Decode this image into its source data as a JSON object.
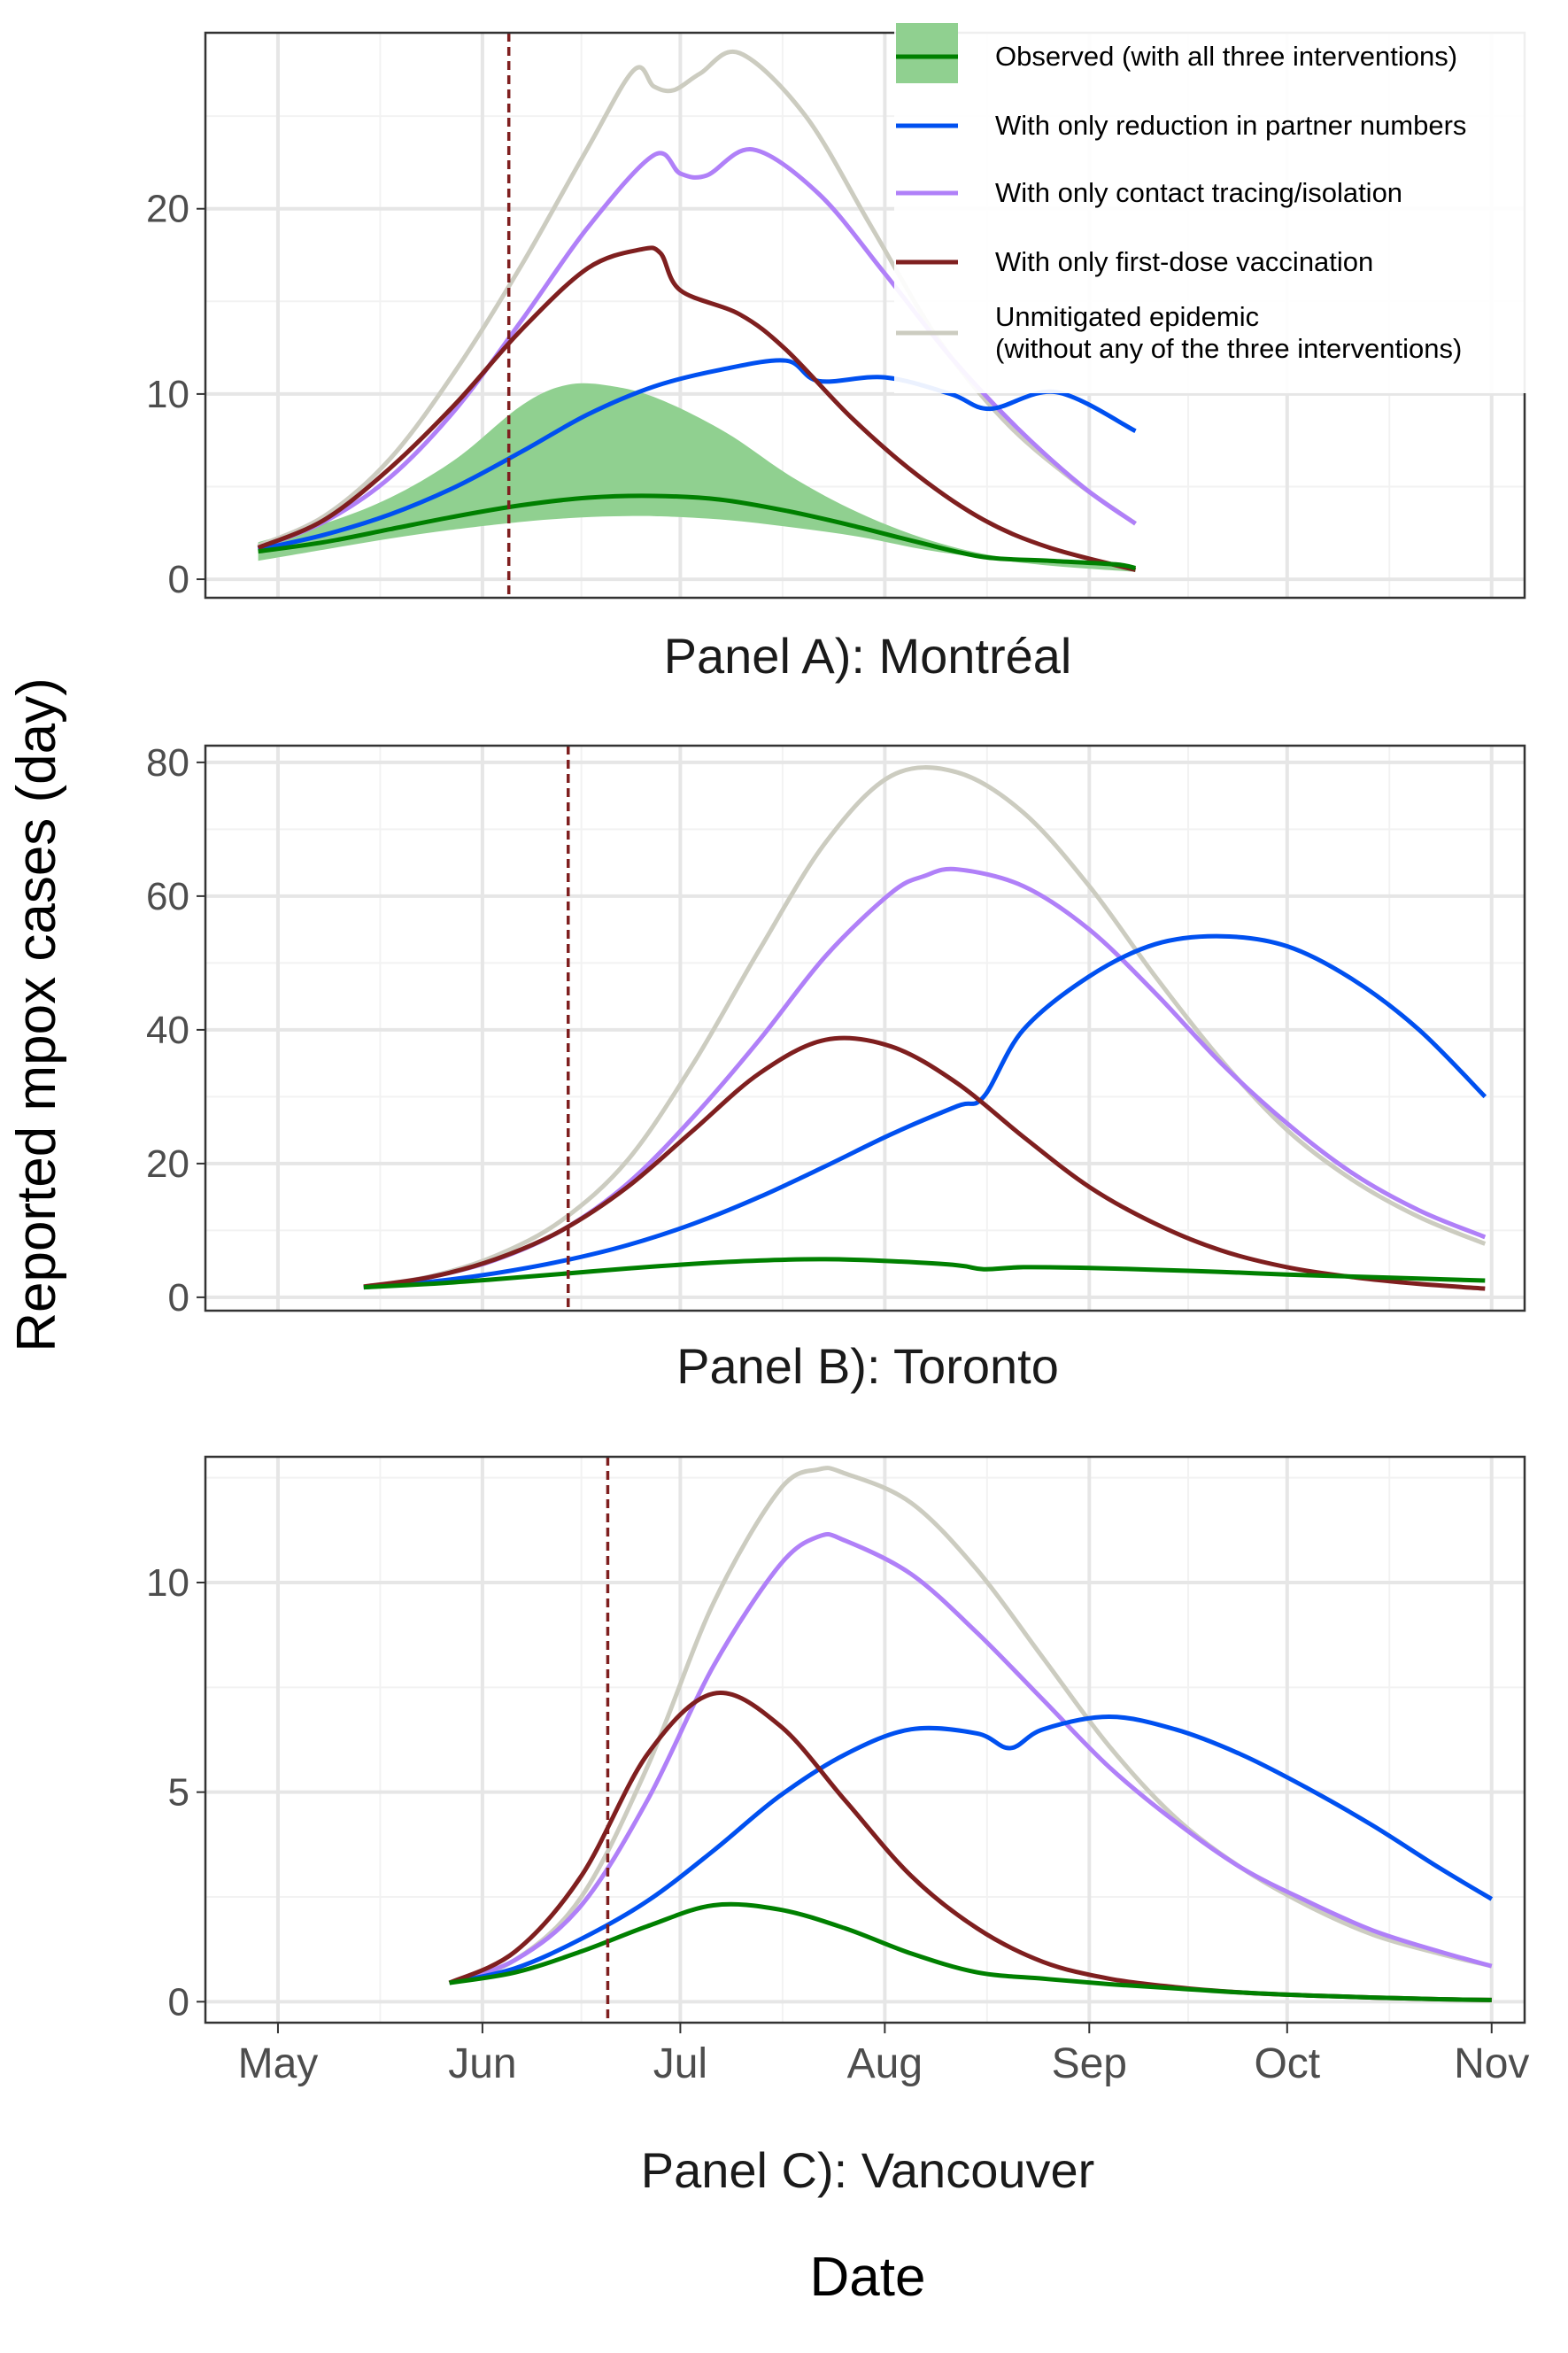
{
  "figure": {
    "ylabel": "Reported mpox cases (day)",
    "xlabel": "Date",
    "x_ticks": [
      "May",
      "Jun",
      "Jul",
      "Aug",
      "Sep",
      "Oct",
      "Nov"
    ],
    "legend_placement": "top-right of Panel A",
    "legend": [
      {
        "key": "observed",
        "label": "Observed (with all three interventions)",
        "color": "#008000",
        "band_color": "#90D090"
      },
      {
        "key": "partners",
        "label": "With only reduction in partner numbers",
        "color": "#0050F0"
      },
      {
        "key": "tracing",
        "label": "With only contact tracing/isolation",
        "color": "#B080F8"
      },
      {
        "key": "vaccination",
        "label": "With only first-dose vaccination",
        "color": "#7F1F1F"
      },
      {
        "key": "unmitigated",
        "label": "Unmitigated epidemic",
        "label2": " (without any of the three interventions)",
        "color": "#CCCCC0"
      }
    ]
  },
  "chart_data": [
    {
      "type": "line",
      "panel": "Panel A)",
      "title": "Panel A): Montréal",
      "x_axis": "date (2022)",
      "ylim": [
        -1,
        29.5
      ],
      "yticks": [
        0,
        10,
        20
      ],
      "grid": true,
      "vline": {
        "date": "2022-06-05",
        "style": "dashed",
        "color": "#7F1F1F"
      },
      "band": {
        "name": "Observed (with all three interventions)",
        "x": [
          "2022-04-28",
          "2022-05-08",
          "2022-05-18",
          "2022-05-28",
          "2022-06-07",
          "2022-06-14",
          "2022-06-21",
          "2022-06-28",
          "2022-07-08",
          "2022-07-18",
          "2022-07-28",
          "2022-08-07",
          "2022-08-17",
          "2022-08-27",
          "2022-09-08"
        ],
        "lower": [
          1.0,
          1.6,
          2.2,
          2.7,
          3.1,
          3.3,
          3.4,
          3.4,
          3.2,
          2.8,
          2.3,
          1.6,
          1.1,
          0.7,
          0.4
        ],
        "upper": [
          2.0,
          3.0,
          4.4,
          6.5,
          9.4,
          10.5,
          10.4,
          9.7,
          7.9,
          5.5,
          3.6,
          2.2,
          1.3,
          0.9,
          0.7
        ]
      },
      "series": [
        {
          "name": "Observed (with all three interventions)",
          "x": [
            "2022-04-28",
            "2022-05-08",
            "2022-05-18",
            "2022-05-28",
            "2022-06-07",
            "2022-06-17",
            "2022-06-27",
            "2022-07-07",
            "2022-07-17",
            "2022-07-27",
            "2022-08-06",
            "2022-08-16",
            "2022-08-26",
            "2022-09-05",
            "2022-09-08"
          ],
          "values": [
            1.5,
            2.0,
            2.7,
            3.4,
            4.0,
            4.4,
            4.5,
            4.3,
            3.7,
            2.9,
            2.0,
            1.2,
            1.0,
            0.8,
            0.6
          ]
        },
        {
          "name": "With only reduction in partner numbers",
          "x": [
            "2022-04-28",
            "2022-05-08",
            "2022-05-18",
            "2022-05-28",
            "2022-06-07",
            "2022-06-17",
            "2022-06-27",
            "2022-07-07",
            "2022-07-17",
            "2022-07-22",
            "2022-08-01",
            "2022-08-11",
            "2022-08-17",
            "2022-08-27",
            "2022-09-08"
          ],
          "values": [
            1.6,
            2.4,
            3.5,
            5.0,
            6.9,
            8.9,
            10.4,
            11.3,
            11.8,
            10.7,
            10.9,
            10.0,
            9.2,
            10.1,
            8.0
          ]
        },
        {
          "name": "With only contact tracing/isolation",
          "x": [
            "2022-04-28",
            "2022-05-08",
            "2022-05-18",
            "2022-05-28",
            "2022-06-07",
            "2022-06-17",
            "2022-06-27",
            "2022-07-01",
            "2022-07-05",
            "2022-07-12",
            "2022-07-22",
            "2022-08-01",
            "2022-08-11",
            "2022-08-21",
            "2022-08-31",
            "2022-09-08"
          ],
          "values": [
            1.7,
            3.1,
            5.5,
            9.2,
            14.0,
            19.0,
            22.9,
            21.9,
            21.8,
            23.2,
            20.8,
            16.5,
            12.0,
            8.2,
            5.0,
            3.0
          ]
        },
        {
          "name": "With only first-dose vaccination",
          "x": [
            "2022-04-28",
            "2022-05-08",
            "2022-05-18",
            "2022-05-28",
            "2022-06-07",
            "2022-06-17",
            "2022-06-25",
            "2022-06-28",
            "2022-07-01",
            "2022-07-10",
            "2022-07-17",
            "2022-07-27",
            "2022-08-06",
            "2022-08-16",
            "2022-08-26",
            "2022-09-08"
          ],
          "values": [
            1.7,
            3.2,
            6.0,
            9.5,
            13.5,
            16.8,
            17.8,
            17.6,
            15.6,
            14.3,
            12.4,
            8.7,
            5.6,
            3.2,
            1.7,
            0.5
          ]
        },
        {
          "name": "Unmitigated epidemic",
          "x": [
            "2022-04-28",
            "2022-05-08",
            "2022-05-18",
            "2022-05-28",
            "2022-06-07",
            "2022-06-17",
            "2022-06-24",
            "2022-06-27",
            "2022-06-30",
            "2022-07-04",
            "2022-07-10",
            "2022-07-20",
            "2022-07-30",
            "2022-08-09",
            "2022-08-19",
            "2022-08-29",
            "2022-09-08"
          ],
          "values": [
            1.8,
            3.4,
            6.5,
            11.3,
            17.0,
            23.3,
            27.5,
            26.6,
            26.4,
            27.3,
            28.4,
            25.0,
            19.0,
            13.0,
            8.6,
            5.5,
            3.0
          ]
        }
      ]
    },
    {
      "type": "line",
      "panel": "Panel B)",
      "title": "Panel B): Toronto",
      "x_axis": "date (2022)",
      "ylim": [
        -2,
        82.5
      ],
      "yticks": [
        0,
        20,
        40,
        60,
        80
      ],
      "grid": true,
      "vline": {
        "date": "2022-06-14",
        "style": "dashed",
        "color": "#7F1F1F"
      },
      "series": [
        {
          "name": "Observed (with all three interventions)",
          "x": [
            "2022-05-14",
            "2022-05-24",
            "2022-06-03",
            "2022-06-13",
            "2022-06-23",
            "2022-07-03",
            "2022-07-13",
            "2022-07-23",
            "2022-08-02",
            "2022-08-12",
            "2022-08-16",
            "2022-08-22",
            "2022-09-01",
            "2022-09-11",
            "2022-09-21",
            "2022-10-01",
            "2022-10-11",
            "2022-10-21",
            "2022-10-31"
          ],
          "values": [
            1.5,
            2.0,
            2.7,
            3.5,
            4.3,
            5.0,
            5.5,
            5.7,
            5.4,
            4.8,
            4.2,
            4.5,
            4.4,
            4.1,
            3.8,
            3.4,
            3.1,
            2.8,
            2.5
          ]
        },
        {
          "name": "With only reduction in partner numbers",
          "x": [
            "2022-05-14",
            "2022-05-24",
            "2022-06-03",
            "2022-06-13",
            "2022-06-23",
            "2022-07-03",
            "2022-07-13",
            "2022-07-23",
            "2022-08-02",
            "2022-08-12",
            "2022-08-16",
            "2022-08-22",
            "2022-09-01",
            "2022-09-11",
            "2022-09-21",
            "2022-10-01",
            "2022-10-11",
            "2022-10-21",
            "2022-10-31"
          ],
          "values": [
            1.5,
            2.3,
            3.6,
            5.4,
            7.8,
            11.0,
            15.0,
            19.6,
            24.4,
            28.6,
            30.0,
            40.0,
            48.0,
            52.8,
            54.0,
            52.5,
            47.5,
            40.0,
            30.0
          ]
        },
        {
          "name": "With only contact tracing/isolation",
          "x": [
            "2022-05-14",
            "2022-05-24",
            "2022-06-03",
            "2022-06-13",
            "2022-06-23",
            "2022-07-03",
            "2022-07-13",
            "2022-07-23",
            "2022-08-02",
            "2022-08-07",
            "2022-08-12",
            "2022-08-22",
            "2022-09-01",
            "2022-09-11",
            "2022-09-21",
            "2022-10-01",
            "2022-10-11",
            "2022-10-21",
            "2022-10-31"
          ],
          "values": [
            1.5,
            3.0,
            5.6,
            10.0,
            17.0,
            27.0,
            38.5,
            51.0,
            60.5,
            63.0,
            64.0,
            61.5,
            55.0,
            45.5,
            35.0,
            26.0,
            18.5,
            13.0,
            9.0
          ]
        },
        {
          "name": "With only first-dose vaccination",
          "x": [
            "2022-05-14",
            "2022-05-24",
            "2022-06-03",
            "2022-06-13",
            "2022-06-23",
            "2022-07-03",
            "2022-07-13",
            "2022-07-23",
            "2022-08-02",
            "2022-08-12",
            "2022-08-22",
            "2022-09-01",
            "2022-09-11",
            "2022-09-21",
            "2022-10-01",
            "2022-10-11",
            "2022-10-21",
            "2022-10-31"
          ],
          "values": [
            1.6,
            3.0,
            5.7,
            10.0,
            16.5,
            25.0,
            33.5,
            38.5,
            37.5,
            32.0,
            24.0,
            16.5,
            11.0,
            7.0,
            4.5,
            3.0,
            2.0,
            1.3
          ]
        },
        {
          "name": "Unmitigated epidemic",
          "x": [
            "2022-05-14",
            "2022-05-24",
            "2022-06-03",
            "2022-06-13",
            "2022-06-23",
            "2022-07-03",
            "2022-07-13",
            "2022-07-23",
            "2022-08-02",
            "2022-08-12",
            "2022-08-22",
            "2022-09-01",
            "2022-09-11",
            "2022-09-21",
            "2022-10-01",
            "2022-10-11",
            "2022-10-21",
            "2022-10-31"
          ],
          "values": [
            1.6,
            3.1,
            6.2,
            11.5,
            20.5,
            35.0,
            52.0,
            68.0,
            78.0,
            78.5,
            72.5,
            61.5,
            48.0,
            35.5,
            25.0,
            17.5,
            12.0,
            8.0
          ]
        }
      ]
    },
    {
      "type": "line",
      "panel": "Panel C)",
      "title": "Panel C): Vancouver",
      "x_axis": "date (2022)",
      "ylim": [
        -0.5,
        13
      ],
      "yticks": [
        0,
        5,
        10
      ],
      "grid": true,
      "vline": {
        "date": "2022-06-20",
        "style": "dashed",
        "color": "#7F1F1F"
      },
      "series": [
        {
          "name": "Observed (with all three interventions)",
          "x": [
            "2022-05-27",
            "2022-06-06",
            "2022-06-16",
            "2022-06-26",
            "2022-07-06",
            "2022-07-16",
            "2022-07-26",
            "2022-08-05",
            "2022-08-15",
            "2022-08-25",
            "2022-09-04",
            "2022-09-14",
            "2022-09-24",
            "2022-10-04",
            "2022-10-14",
            "2022-10-24",
            "2022-11-01"
          ],
          "values": [
            0.45,
            0.7,
            1.2,
            1.8,
            2.3,
            2.2,
            1.75,
            1.15,
            0.7,
            0.55,
            0.42,
            0.32,
            0.22,
            0.15,
            0.1,
            0.06,
            0.04
          ]
        },
        {
          "name": "With only reduction in partner numbers",
          "x": [
            "2022-05-27",
            "2022-06-06",
            "2022-06-16",
            "2022-06-26",
            "2022-07-06",
            "2022-07-16",
            "2022-07-26",
            "2022-08-05",
            "2022-08-15",
            "2022-08-20",
            "2022-08-25",
            "2022-09-04",
            "2022-09-14",
            "2022-09-24",
            "2022-10-04",
            "2022-10-14",
            "2022-10-24",
            "2022-11-01"
          ],
          "values": [
            0.45,
            0.8,
            1.5,
            2.4,
            3.6,
            4.9,
            5.9,
            6.5,
            6.4,
            6.05,
            6.5,
            6.8,
            6.5,
            5.9,
            5.1,
            4.2,
            3.2,
            2.45
          ]
        },
        {
          "name": "With only contact tracing/isolation",
          "x": [
            "2022-05-27",
            "2022-06-06",
            "2022-06-16",
            "2022-06-26",
            "2022-07-06",
            "2022-07-16",
            "2022-07-22",
            "2022-07-26",
            "2022-08-05",
            "2022-08-15",
            "2022-08-25",
            "2022-09-04",
            "2022-09-14",
            "2022-09-24",
            "2022-10-04",
            "2022-10-14",
            "2022-10-24",
            "2022-11-01"
          ],
          "values": [
            0.45,
            1.0,
            2.3,
            4.8,
            8.0,
            10.4,
            11.1,
            11.0,
            10.2,
            8.8,
            7.2,
            5.6,
            4.3,
            3.2,
            2.4,
            1.7,
            1.2,
            0.85
          ]
        },
        {
          "name": "With only first-dose vaccination",
          "x": [
            "2022-05-27",
            "2022-06-06",
            "2022-06-16",
            "2022-06-26",
            "2022-07-06",
            "2022-07-16",
            "2022-07-26",
            "2022-08-05",
            "2022-08-15",
            "2022-08-25",
            "2022-09-04",
            "2022-09-14",
            "2022-09-24",
            "2022-10-04",
            "2022-10-14",
            "2022-10-24",
            "2022-11-01"
          ],
          "values": [
            0.45,
            1.2,
            3.0,
            5.9,
            7.35,
            6.6,
            4.8,
            3.0,
            1.75,
            0.95,
            0.55,
            0.35,
            0.22,
            0.15,
            0.1,
            0.06,
            0.04
          ]
        },
        {
          "name": "Unmitigated epidemic",
          "x": [
            "2022-05-27",
            "2022-06-06",
            "2022-06-16",
            "2022-06-26",
            "2022-07-06",
            "2022-07-16",
            "2022-07-22",
            "2022-07-26",
            "2022-08-05",
            "2022-08-15",
            "2022-08-25",
            "2022-09-04",
            "2022-09-14",
            "2022-09-24",
            "2022-10-04",
            "2022-10-14",
            "2022-10-24",
            "2022-11-01"
          ],
          "values": [
            0.45,
            1.0,
            2.5,
            5.6,
            9.5,
            12.2,
            12.7,
            12.6,
            11.9,
            10.3,
            8.2,
            6.1,
            4.4,
            3.2,
            2.3,
            1.6,
            1.15,
            0.85
          ]
        }
      ]
    }
  ]
}
